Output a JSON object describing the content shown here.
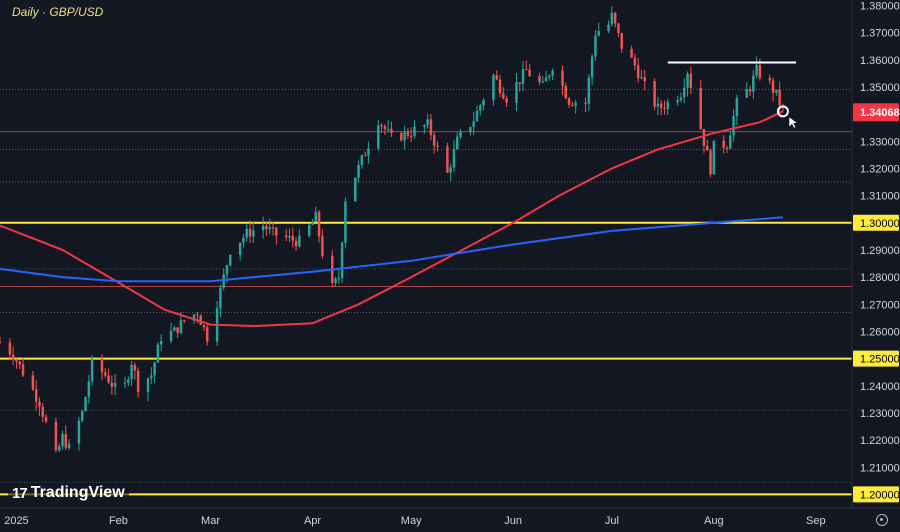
{
  "title": "Daily · GBP/USD",
  "logo": "TradingView",
  "price_tag": "1.34068",
  "colors": {
    "background": "#131722",
    "up": "#26a69a",
    "down": "#ef5350",
    "ma_red": "#f23645",
    "ma_blue": "#2962ff",
    "yellow_level": "#ffeb3b",
    "text": "#d1d4dc"
  },
  "icons": {
    "settings": "settings-icon",
    "cursor": "arrow-cursor-icon"
  },
  "chart_data": {
    "type": "candlestick",
    "title": "Daily · GBP/USD",
    "y_range": [
      1.195,
      1.382
    ],
    "y_ticks": [
      "1.38000",
      "1.37000",
      "1.36000",
      "1.35000",
      "1.33000",
      "1.32000",
      "1.31000",
      "1.30000",
      "1.29000",
      "1.28000",
      "1.27000",
      "1.26000",
      "1.25000",
      "1.24000",
      "1.23000",
      "1.22000",
      "1.21000",
      "1.20000"
    ],
    "x_labels": [
      {
        "label": "2025",
        "date": "2025-01-01"
      },
      {
        "label": "Feb",
        "date": "2025-02-01"
      },
      {
        "label": "Mar",
        "date": "2025-03-01"
      },
      {
        "label": "Apr",
        "date": "2025-04-01"
      },
      {
        "label": "May",
        "date": "2025-05-01"
      },
      {
        "label": "Jun",
        "date": "2025-06-01"
      },
      {
        "label": "Jul",
        "date": "2025-07-01"
      },
      {
        "label": "Aug",
        "date": "2025-08-01"
      },
      {
        "label": "Sep",
        "date": "2025-09-01"
      }
    ],
    "date_range": [
      "2024-12-27",
      "2025-09-12"
    ],
    "price_path": [
      [
        "2024-12-27",
        1.256
      ],
      [
        "2024-12-31",
        1.2515
      ],
      [
        "2025-01-03",
        1.245
      ],
      [
        "2025-01-08",
        1.234
      ],
      [
        "2025-01-10",
        1.226
      ],
      [
        "2025-01-13",
        1.214
      ],
      [
        "2025-01-15",
        1.221
      ],
      [
        "2025-01-17",
        1.217
      ],
      [
        "2025-01-21",
        1.23
      ],
      [
        "2025-01-24",
        1.248
      ],
      [
        "2025-01-28",
        1.244
      ],
      [
        "2025-01-31",
        1.239
      ],
      [
        "2025-02-03",
        1.24
      ],
      [
        "2025-02-05",
        1.249
      ],
      [
        "2025-02-07",
        1.24
      ],
      [
        "2025-02-11",
        1.244
      ],
      [
        "2025-02-14",
        1.258
      ],
      [
        "2025-02-18",
        1.26
      ],
      [
        "2025-02-21",
        1.264
      ],
      [
        "2025-02-25",
        1.267
      ],
      [
        "2025-02-28",
        1.258
      ],
      [
        "2025-03-04",
        1.275
      ],
      [
        "2025-03-07",
        1.29
      ],
      [
        "2025-03-12",
        1.296
      ],
      [
        "2025-03-17",
        1.299
      ],
      [
        "2025-03-20",
        1.296
      ],
      [
        "2025-03-25",
        1.294
      ],
      [
        "2025-03-28",
        1.293
      ],
      [
        "2025-04-02",
        1.302
      ],
      [
        "2025-04-04",
        1.289
      ],
      [
        "2025-04-07",
        1.276
      ],
      [
        "2025-04-09",
        1.28
      ],
      [
        "2025-04-11",
        1.309
      ],
      [
        "2025-04-16",
        1.323
      ],
      [
        "2025-04-21",
        1.338
      ],
      [
        "2025-04-25",
        1.331
      ],
      [
        "2025-04-30",
        1.333
      ],
      [
        "2025-05-06",
        1.336
      ],
      [
        "2025-05-12",
        1.318
      ],
      [
        "2025-05-15",
        1.33
      ],
      [
        "2025-05-20",
        1.338
      ],
      [
        "2025-05-26",
        1.354
      ],
      [
        "2025-05-30",
        1.346
      ],
      [
        "2025-06-05",
        1.356
      ],
      [
        "2025-06-10",
        1.35
      ],
      [
        "2025-06-13",
        1.358
      ],
      [
        "2025-06-18",
        1.345
      ],
      [
        "2025-06-23",
        1.344
      ],
      [
        "2025-06-26",
        1.37
      ],
      [
        "2025-06-30",
        1.373
      ],
      [
        "2025-07-01",
        1.376
      ],
      [
        "2025-07-04",
        1.365
      ],
      [
        "2025-07-08",
        1.358
      ],
      [
        "2025-07-11",
        1.35
      ],
      [
        "2025-07-15",
        1.342
      ],
      [
        "2025-07-18",
        1.344
      ],
      [
        "2025-07-22",
        1.348
      ],
      [
        "2025-07-24",
        1.356
      ],
      [
        "2025-07-28",
        1.335
      ],
      [
        "2025-07-31",
        1.32
      ],
      [
        "2025-08-01",
        1.328
      ],
      [
        "2025-08-05",
        1.329
      ],
      [
        "2025-08-08",
        1.344
      ],
      [
        "2025-08-12",
        1.35
      ],
      [
        "2025-08-14",
        1.356
      ],
      [
        "2025-08-18",
        1.351
      ],
      [
        "2025-08-20",
        1.347
      ],
      [
        "2025-08-22",
        1.341
      ]
    ],
    "series": [
      {
        "name": "",
        "color": "#f23645",
        "points": [
          [
            "2024-12-27",
            1.299
          ],
          [
            "2025-01-15",
            1.29
          ],
          [
            "2025-02-01",
            1.278
          ],
          [
            "2025-02-15",
            1.268
          ],
          [
            "2025-03-01",
            1.2625
          ],
          [
            "2025-03-15",
            1.262
          ],
          [
            "2025-04-01",
            1.263
          ],
          [
            "2025-04-15",
            1.27
          ],
          [
            "2025-05-01",
            1.28
          ],
          [
            "2025-05-15",
            1.289
          ],
          [
            "2025-06-01",
            1.3
          ],
          [
            "2025-06-15",
            1.31
          ],
          [
            "2025-07-01",
            1.32
          ],
          [
            "2025-07-15",
            1.327
          ],
          [
            "2025-08-01",
            1.333
          ],
          [
            "2025-08-15",
            1.337
          ],
          [
            "2025-08-22",
            1.341
          ]
        ]
      },
      {
        "name": "",
        "color": "#2962ff",
        "points": [
          [
            "2024-12-27",
            1.283
          ],
          [
            "2025-01-15",
            1.28
          ],
          [
            "2025-02-01",
            1.2785
          ],
          [
            "2025-03-01",
            1.2785
          ],
          [
            "2025-04-01",
            1.282
          ],
          [
            "2025-05-01",
            1.286
          ],
          [
            "2025-06-01",
            1.292
          ],
          [
            "2025-07-01",
            1.297
          ],
          [
            "2025-08-01",
            1.3
          ],
          [
            "2025-08-22",
            1.302
          ]
        ]
      }
    ],
    "horizontal_levels": [
      {
        "price": 1.3,
        "kind": "yellow"
      },
      {
        "price": 1.25,
        "kind": "yellow"
      },
      {
        "price": 1.2,
        "kind": "yellow"
      },
      {
        "price": 1.3335,
        "kind": "red-thin"
      },
      {
        "price": 1.2765,
        "kind": "red-thin"
      },
      {
        "price": 1.349,
        "kind": "dotted"
      },
      {
        "price": 1.327,
        "kind": "dotted"
      },
      {
        "price": 1.315,
        "kind": "dotted"
      },
      {
        "price": 1.283,
        "kind": "dotted"
      },
      {
        "price": 1.267,
        "kind": "dotted"
      },
      {
        "price": 1.231,
        "kind": "dotted"
      },
      {
        "price": 1.2045,
        "kind": "dotted"
      }
    ],
    "resistance_line": {
      "price": 1.359,
      "from": "2025-07-18",
      "to": "2025-08-26",
      "color": "#ffffff"
    },
    "marker": {
      "date": "2025-08-22",
      "price": 1.341
    },
    "last_price": 1.34068
  }
}
